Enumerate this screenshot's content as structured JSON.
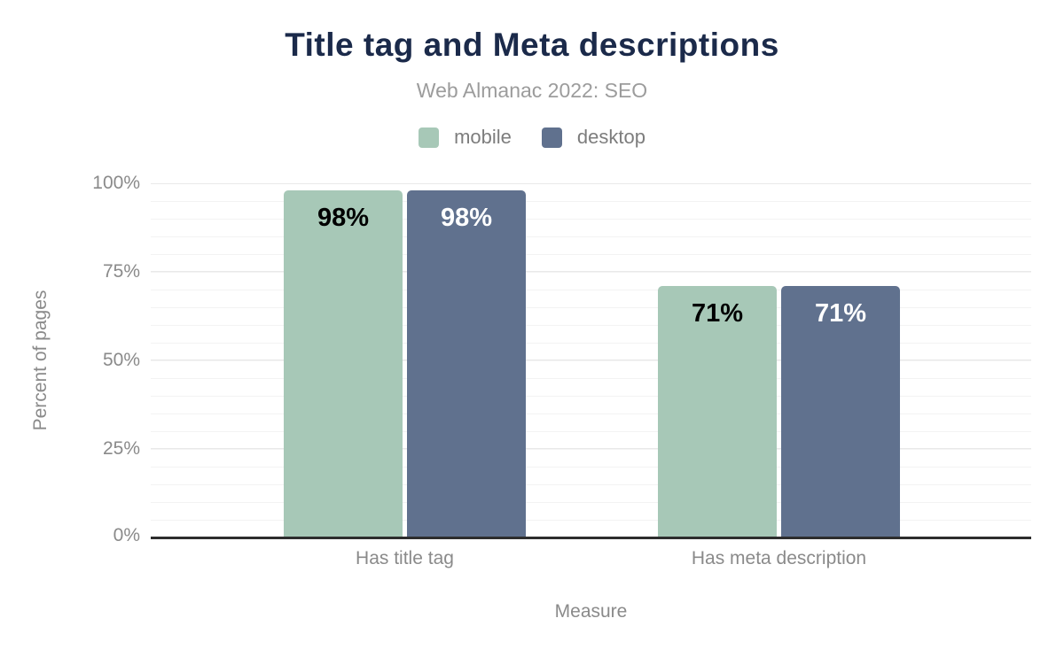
{
  "chart_data": {
    "type": "bar",
    "title": "Title tag and Meta descriptions",
    "subtitle": "Web Almanac 2022: SEO",
    "xlabel": "Measure",
    "ylabel": "Percent of pages",
    "categories": [
      "Has title tag",
      "Has meta description"
    ],
    "series": [
      {
        "name": "mobile",
        "color": "#a7c8b7",
        "label_color": "#000000",
        "values": [
          98,
          71
        ],
        "labels": [
          "98%",
          "71%"
        ]
      },
      {
        "name": "desktop",
        "color": "#60718e",
        "label_color": "#ffffff",
        "values": [
          98,
          71
        ],
        "labels": [
          "98%",
          "71%"
        ]
      }
    ],
    "ylim": [
      0,
      100
    ],
    "yticks": [
      "0%",
      "25%",
      "50%",
      "75%",
      "100%"
    ],
    "ytick_values": [
      0,
      25,
      50,
      75,
      100
    ],
    "grid": "horizontal major every 25%, minor every 5%",
    "legend_position": "top",
    "colors": {
      "title": "#1b2a4a",
      "subtitle": "#9c9c9c",
      "axis_text": "#8a8a8a",
      "axis_line": "#2d2d2d"
    }
  }
}
